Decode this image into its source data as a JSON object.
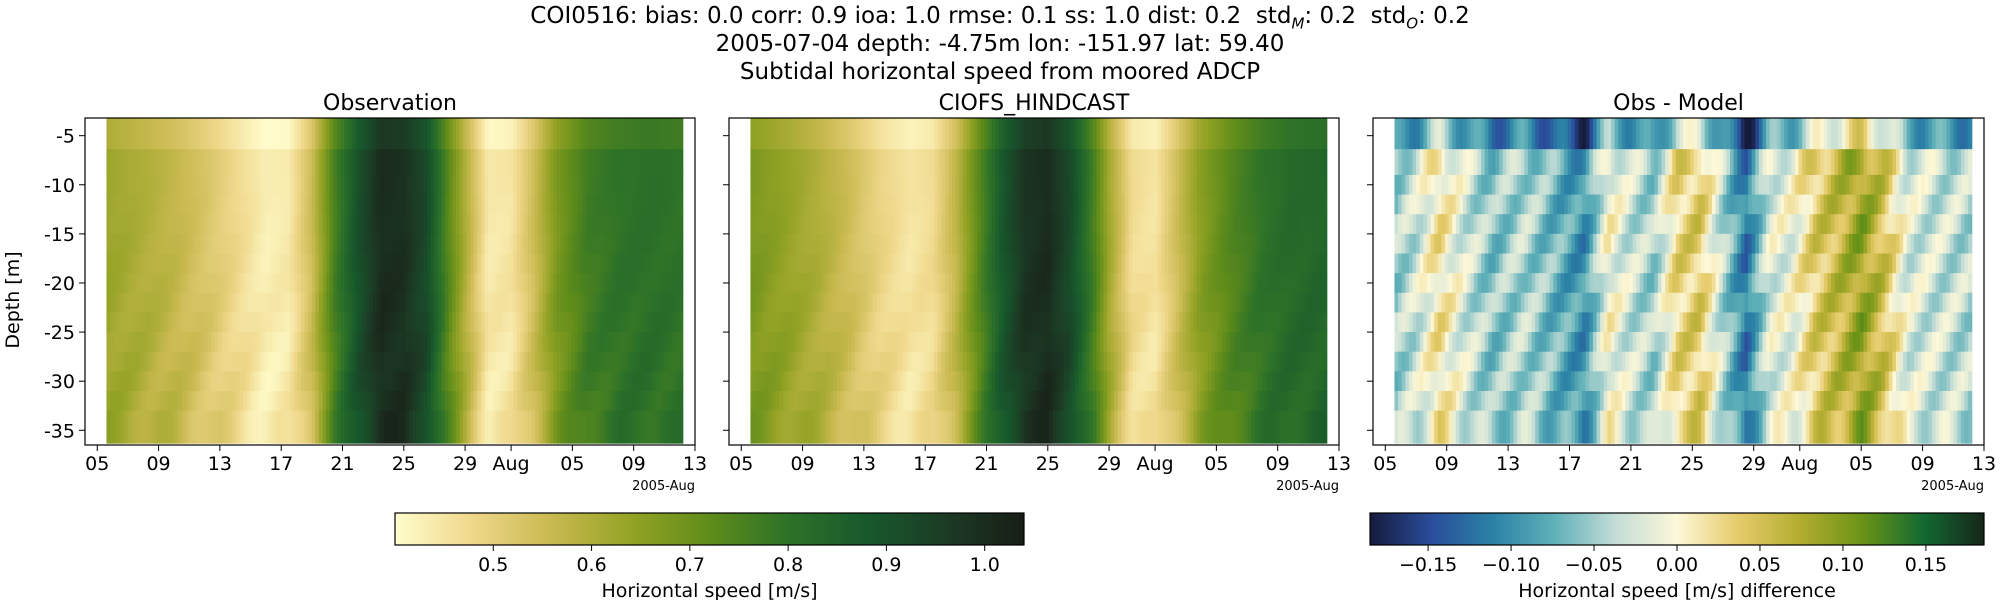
{
  "header": {
    "stats_prefix": "COI0516: bias: 0.0  corr: 0.9  ioa: 1.0  rmse: 0.1  ss: 1.0  dist: 0.2",
    "stats_std_model_label": "std",
    "stats_std_model_sub": "M",
    "stats_std_model_value": ": 0.2",
    "stats_std_obs_label": "std",
    "stats_std_obs_sub": "O",
    "stats_std_obs_value": ": 0.2",
    "location_line": "2005-07-04 depth: -4.75m lon: -151.97 lat: 59.40",
    "description_line": "Subtidal horizontal speed from moored ADCP"
  },
  "chart_data": {
    "type": "heatmap",
    "ylabel": "Depth [m]",
    "x_ticks": [
      "05",
      "09",
      "13",
      "17",
      "21",
      "25",
      "29",
      "Aug",
      "05",
      "09",
      "13"
    ],
    "x_tick_days": [
      0,
      4,
      8,
      12,
      16,
      20,
      24,
      27,
      31,
      35,
      39
    ],
    "x_offset_label": "2005-Aug",
    "xlim_days": [
      -0.8,
      39
    ],
    "data_range_days": [
      0.6,
      38.2
    ],
    "y_ticks": [
      "-5",
      "-10",
      "-15",
      "-20",
      "-25",
      "-30",
      "-35"
    ],
    "y_tick_values": [
      -5,
      -10,
      -15,
      -20,
      -25,
      -30,
      -35
    ],
    "ylim": [
      -36.5,
      -3.2
    ],
    "depth_bins": [
      -4.75,
      -8,
      -10,
      -12,
      -14,
      -16,
      -18,
      -20,
      -22,
      -24,
      -26,
      -28,
      -30,
      -32,
      -34
    ],
    "panels": [
      {
        "title": "Observation",
        "colormap": "speed",
        "vmin": 0.4,
        "vmax": 1.04
      },
      {
        "title": "CIOFS_HINDCAST",
        "colormap": "speed",
        "vmin": 0.4,
        "vmax": 1.04
      },
      {
        "title": "Obs - Model",
        "colormap": "diff",
        "vmin": -0.185,
        "vmax": 0.185
      }
    ],
    "colorbars": [
      {
        "label": "Horizontal speed [m/s]",
        "vmin": 0.4,
        "vmax": 1.04,
        "ticks": [
          "0.5",
          "0.6",
          "0.7",
          "0.8",
          "0.9",
          "1.0"
        ],
        "tick_values": [
          0.5,
          0.6,
          0.7,
          0.8,
          0.9,
          1.0
        ]
      },
      {
        "label": "Horizontal speed [m/s] difference",
        "vmin": -0.185,
        "vmax": 0.185,
        "ticks": [
          "−0.15",
          "−0.10",
          "−0.05",
          "0.00",
          "0.05",
          "0.10",
          "0.15"
        ],
        "tick_values": [
          -0.15,
          -0.1,
          -0.05,
          0.0,
          0.05,
          0.1,
          0.15
        ]
      }
    ],
    "colormaps": {
      "speed": [
        "#fffdcd",
        "#efd78a",
        "#c8b94f",
        "#94a325",
        "#5f8c1a",
        "#2d7228",
        "#17592c",
        "#1c3b25",
        "#181d16"
      ],
      "diff": [
        "#161b3d",
        "#2a4d9c",
        "#2a82a6",
        "#5fb0b8",
        "#c3ddd6",
        "#fdf8d8",
        "#e6cb6a",
        "#b3ad30",
        "#6c9416",
        "#136a31",
        "#16261a"
      ]
    },
    "observation_profile": [
      {
        "day": 0.6,
        "value": 0.63
      },
      {
        "day": 3,
        "value": 0.6
      },
      {
        "day": 5,
        "value": 0.57
      },
      {
        "day": 7,
        "value": 0.53
      },
      {
        "day": 9,
        "value": 0.48
      },
      {
        "day": 11,
        "value": 0.43
      },
      {
        "day": 12.5,
        "value": 0.44
      },
      {
        "day": 14,
        "value": 0.55
      },
      {
        "day": 15.5,
        "value": 0.76
      },
      {
        "day": 17,
        "value": 0.9
      },
      {
        "day": 18.5,
        "value": 1.0
      },
      {
        "day": 20,
        "value": 0.99
      },
      {
        "day": 21.5,
        "value": 0.92
      },
      {
        "day": 23,
        "value": 0.72
      },
      {
        "day": 24,
        "value": 0.6
      },
      {
        "day": 25.5,
        "value": 0.44
      },
      {
        "day": 27,
        "value": 0.45
      },
      {
        "day": 28.5,
        "value": 0.55
      },
      {
        "day": 30,
        "value": 0.68
      },
      {
        "day": 32,
        "value": 0.77
      },
      {
        "day": 34,
        "value": 0.8
      },
      {
        "day": 36,
        "value": 0.81
      },
      {
        "day": 38.2,
        "value": 0.8
      }
    ],
    "model_profile": [
      {
        "day": 0.6,
        "value": 0.68
      },
      {
        "day": 3,
        "value": 0.64
      },
      {
        "day": 5,
        "value": 0.6
      },
      {
        "day": 7,
        "value": 0.55
      },
      {
        "day": 9,
        "value": 0.49
      },
      {
        "day": 11,
        "value": 0.45
      },
      {
        "day": 12.5,
        "value": 0.47
      },
      {
        "day": 14,
        "value": 0.57
      },
      {
        "day": 15.5,
        "value": 0.73
      },
      {
        "day": 17,
        "value": 0.88
      },
      {
        "day": 18.5,
        "value": 0.98
      },
      {
        "day": 20,
        "value": 1.0
      },
      {
        "day": 21.5,
        "value": 0.92
      },
      {
        "day": 23,
        "value": 0.76
      },
      {
        "day": 24,
        "value": 0.62
      },
      {
        "day": 25.5,
        "value": 0.47
      },
      {
        "day": 27,
        "value": 0.45
      },
      {
        "day": 28.5,
        "value": 0.55
      },
      {
        "day": 30,
        "value": 0.66
      },
      {
        "day": 32,
        "value": 0.74
      },
      {
        "day": 34,
        "value": 0.8
      },
      {
        "day": 36,
        "value": 0.83
      },
      {
        "day": 38.2,
        "value": 0.84
      }
    ],
    "difference_profile": [
      {
        "day": 0.6,
        "value": -0.05
      },
      {
        "day": 2,
        "value": -0.03
      },
      {
        "day": 3.5,
        "value": 0.02
      },
      {
        "day": 5,
        "value": -0.02
      },
      {
        "day": 7,
        "value": -0.06
      },
      {
        "day": 9,
        "value": -0.04
      },
      {
        "day": 11,
        "value": -0.07
      },
      {
        "day": 13,
        "value": -0.1
      },
      {
        "day": 14.5,
        "value": 0.0
      },
      {
        "day": 16,
        "value": -0.03
      },
      {
        "day": 17.5,
        "value": -0.05
      },
      {
        "day": 19,
        "value": 0.03
      },
      {
        "day": 20.5,
        "value": 0.04
      },
      {
        "day": 22,
        "value": -0.04
      },
      {
        "day": 23.5,
        "value": -0.12
      },
      {
        "day": 25,
        "value": -0.02
      },
      {
        "day": 26.5,
        "value": -0.01
      },
      {
        "day": 28,
        "value": 0.04
      },
      {
        "day": 29.5,
        "value": 0.06
      },
      {
        "day": 31,
        "value": 0.09
      },
      {
        "day": 32.5,
        "value": 0.05
      },
      {
        "day": 34,
        "value": -0.02
      },
      {
        "day": 36,
        "value": -0.03
      },
      {
        "day": 38.2,
        "value": -0.04
      }
    ]
  }
}
